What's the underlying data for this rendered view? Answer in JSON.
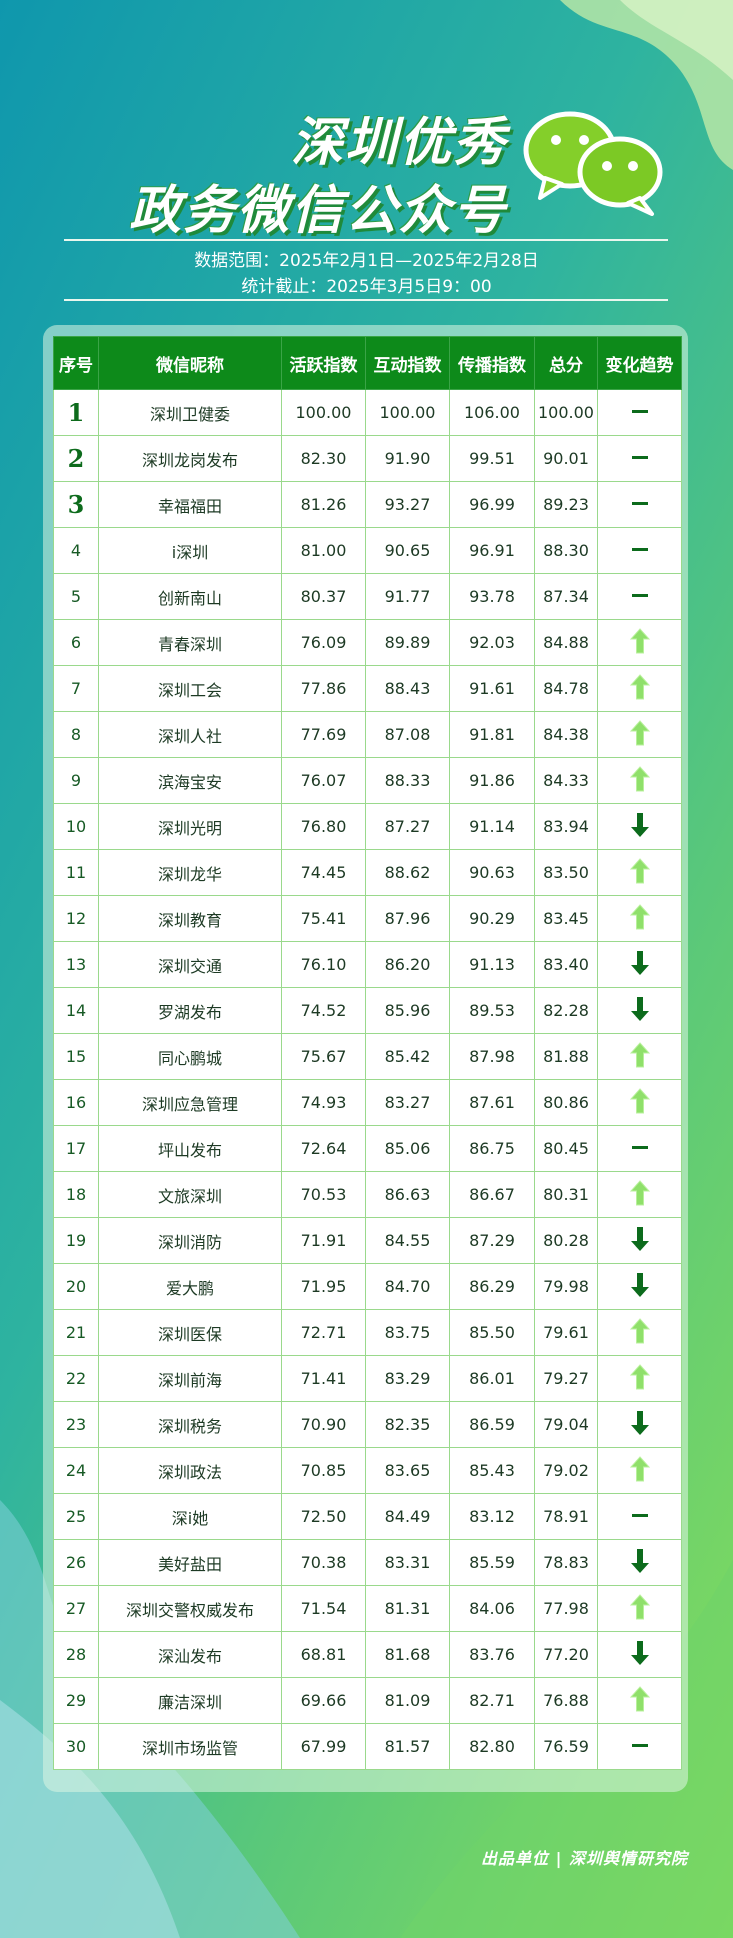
{
  "header": {
    "title_line1": "深圳优秀",
    "title_line2": "政务微信公众号",
    "data_range": "数据范围：2025年2月1日—2025年2月28日",
    "cutoff": "统计截止：2025年3月5日9：00"
  },
  "table": {
    "columns": [
      "序号",
      "微信昵称",
      "活跃指数",
      "互动指数",
      "传播指数",
      "总分",
      "变化趋势"
    ],
    "rows": [
      [
        "1",
        "深圳卫健委",
        "100.00",
        "100.00",
        "106.00",
        "100.00"
      ],
      [
        "2",
        "深圳龙岗发布",
        "82.30",
        "91.90",
        "99.51",
        "90.01"
      ],
      [
        "3",
        "幸福福田",
        "81.26",
        "93.27",
        "96.99",
        "89.23"
      ],
      [
        "4",
        "i深圳",
        "81.00",
        "90.65",
        "96.91",
        "88.30"
      ],
      [
        "5",
        "创新南山",
        "80.37",
        "91.77",
        "93.78",
        "87.34"
      ],
      [
        "6",
        "青春深圳",
        "76.09",
        "89.89",
        "92.03",
        "84.88"
      ],
      [
        "7",
        "深圳工会",
        "77.86",
        "88.43",
        "91.61",
        "84.78"
      ],
      [
        "8",
        "深圳人社",
        "77.69",
        "87.08",
        "91.81",
        "84.38"
      ],
      [
        "9",
        "滨海宝安",
        "76.07",
        "88.33",
        "91.86",
        "84.33"
      ],
      [
        "10",
        "深圳光明",
        "76.80",
        "87.27",
        "91.14",
        "83.94"
      ],
      [
        "11",
        "深圳龙华",
        "74.45",
        "88.62",
        "90.63",
        "83.50"
      ],
      [
        "12",
        "深圳教育",
        "75.41",
        "87.96",
        "90.29",
        "83.45"
      ],
      [
        "13",
        "深圳交通",
        "76.10",
        "86.20",
        "91.13",
        "83.40"
      ],
      [
        "14",
        "罗湖发布",
        "74.52",
        "85.96",
        "89.53",
        "82.28"
      ],
      [
        "15",
        "同心鹏城",
        "75.67",
        "85.42",
        "87.98",
        "81.88"
      ],
      [
        "16",
        "深圳应急管理",
        "74.93",
        "83.27",
        "87.61",
        "80.86"
      ],
      [
        "17",
        "坪山发布",
        "72.64",
        "85.06",
        "86.75",
        "80.45"
      ],
      [
        "18",
        "文旅深圳",
        "70.53",
        "86.63",
        "86.67",
        "80.31"
      ],
      [
        "19",
        "深圳消防",
        "71.91",
        "84.55",
        "87.29",
        "80.28"
      ],
      [
        "20",
        "爱大鹏",
        "71.95",
        "84.70",
        "86.29",
        "79.98"
      ],
      [
        "21",
        "深圳医保",
        "72.71",
        "83.75",
        "85.50",
        "79.61"
      ],
      [
        "22",
        "深圳前海",
        "71.41",
        "83.29",
        "86.01",
        "79.27"
      ],
      [
        "23",
        "深圳税务",
        "70.90",
        "82.35",
        "86.59",
        "79.04"
      ],
      [
        "24",
        "深圳政法",
        "70.85",
        "83.65",
        "85.43",
        "79.02"
      ],
      [
        "25",
        "深i她",
        "72.50",
        "84.49",
        "83.12",
        "78.91"
      ],
      [
        "26",
        "美好盐田",
        "70.38",
        "83.31",
        "85.59",
        "78.83"
      ],
      [
        "27",
        "深圳交警权威发布",
        "71.54",
        "81.31",
        "84.06",
        "77.98"
      ],
      [
        "28",
        "深汕发布",
        "68.81",
        "81.68",
        "83.76",
        "77.20"
      ],
      [
        "29",
        "廉洁深圳",
        "69.66",
        "81.09",
        "82.71",
        "76.88"
      ],
      [
        "30",
        "深圳市场监管",
        "67.99",
        "81.57",
        "82.80",
        "76.59"
      ]
    ],
    "trends": [
      "flat",
      "flat",
      "flat",
      "flat",
      "flat",
      "up",
      "up",
      "up",
      "up",
      "down",
      "up",
      "up",
      "down",
      "down",
      "up",
      "up",
      "flat",
      "up",
      "down",
      "down",
      "up",
      "up",
      "down",
      "up",
      "flat",
      "down",
      "up",
      "down",
      "up",
      "flat"
    ]
  },
  "footer": "出品单位 | 深圳舆情研究院"
}
